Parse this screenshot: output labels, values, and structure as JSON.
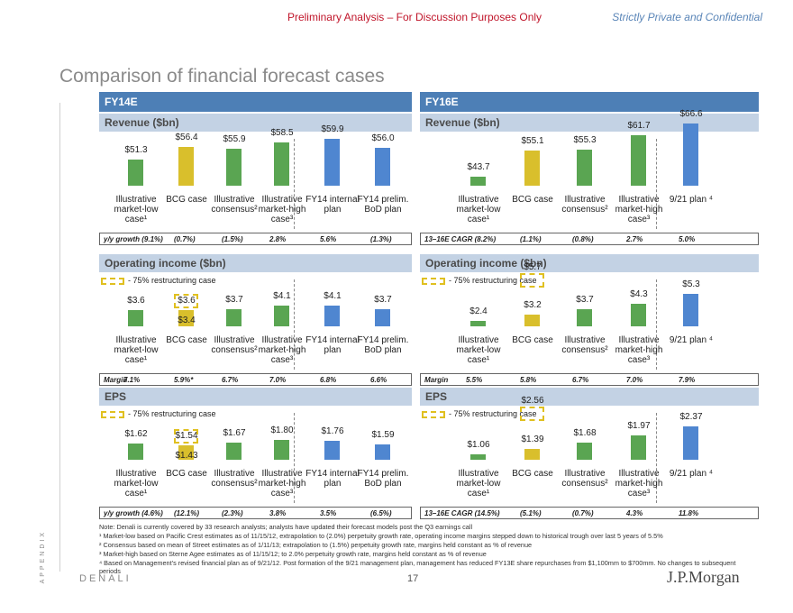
{
  "header": {
    "left": "Preliminary Analysis – For Discussion Purposes Only",
    "right": "Strictly Private and Confidential"
  },
  "title": "Comparison of financial forecast cases",
  "sidebar": "APPENDIX",
  "colors": {
    "green": "#5aa552",
    "gold": "#d9bf2c",
    "blue": "#4f86d0",
    "header": "#4d7fb6",
    "sub": "#c3d2e4"
  },
  "left": {
    "title": "FY14E",
    "categories": [
      "Illustrative market-low case¹",
      "BCG case",
      "Illustrative consensus²",
      "Illustrative market-high case³",
      "FY14 internal plan",
      "FY14 prelim. BoD plan"
    ],
    "revenue": {
      "title": "Revenue ($bn)",
      "labels": [
        "$51.3",
        "$56.4",
        "$55.9",
        "$58.5",
        "$59.9",
        "$56.0"
      ],
      "values": [
        51.3,
        56.4,
        55.9,
        58.5,
        59.9,
        56.0
      ],
      "growth_label": "y/y growth (9.1%)",
      "growth": [
        "(0.7%)",
        "(1.5%)",
        "2.8%",
        "5.6%",
        "(1.3%)"
      ]
    },
    "opinc": {
      "title": "Operating income ($bn)",
      "legend": "- 75% restructuring case",
      "labels": [
        "$3.6",
        "$3.6",
        "$3.7",
        "$4.1",
        "$4.1",
        "$3.7"
      ],
      "values": [
        3.6,
        3.6,
        3.7,
        4.1,
        4.1,
        3.7
      ],
      "restructuring_label": "$3.4",
      "restructuring_value": 3.4,
      "growth_label": "Margin",
      "growth": [
        "7.1%",
        "5.9%*",
        "6.7%",
        "7.0%",
        "6.8%",
        "6.6%"
      ]
    },
    "eps": {
      "title": "EPS",
      "legend": "- 75% restructuring case",
      "labels": [
        "$1.62",
        "$1.54",
        "$1.67",
        "$1.80",
        "$1.76",
        "$1.59"
      ],
      "values": [
        1.62,
        1.54,
        1.67,
        1.8,
        1.76,
        1.59
      ],
      "restructuring_label": "$1.43",
      "restructuring_value": 1.43,
      "growth_label": "y/y growth (4.6%)",
      "growth": [
        "(12.1%)",
        "(2.3%)",
        "3.8%",
        "3.5%",
        "(6.5%)"
      ]
    }
  },
  "right": {
    "title": "FY16E",
    "categories": [
      "Illustrative market-low case¹",
      "BCG case",
      "Illustrative consensus²",
      "Illustrative market-high case³",
      "9/21 plan ⁴"
    ],
    "revenue": {
      "title": "Revenue ($bn)",
      "labels": [
        "$43.7",
        "$55.1",
        "$55.3",
        "$61.7",
        "$66.6"
      ],
      "values": [
        43.7,
        55.1,
        55.3,
        61.7,
        66.6
      ],
      "growth_label": "13–16E CAGR (8.2%)",
      "growth": [
        "(1.1%)",
        "(0.8%)",
        "2.7%",
        "5.0%"
      ]
    },
    "opinc": {
      "title": "Operating income ($bn)",
      "legend": "- 75% restructuring case",
      "labels": [
        "$2.4",
        "$3.2",
        "$3.7",
        "$4.3",
        "$5.3"
      ],
      "values": [
        2.4,
        3.2,
        3.7,
        4.3,
        5.3
      ],
      "restructuring_label": "$5.7",
      "restructuring_value": 5.7,
      "growth_label": "Margin",
      "growth": [
        "5.5%",
        "5.8%",
        "6.7%",
        "7.0%",
        "7.9%"
      ]
    },
    "eps": {
      "title": "EPS",
      "legend": "- 75% restructuring case",
      "labels": [
        "$1.06",
        "$1.39",
        "$1.68",
        "$1.97",
        "$2.37"
      ],
      "values": [
        1.06,
        1.39,
        1.68,
        1.97,
        2.37
      ],
      "restructuring_label": "$2.56",
      "restructuring_value": 2.56,
      "growth_label": "13–16E CAGR (14.5%)",
      "growth": [
        "(5.1%)",
        "(0.7%)",
        "4.3%",
        "11.8%"
      ]
    }
  },
  "footnotes": {
    "note": "Note: Denali is currently covered by 33 research analysts; analysts have updated their forecast models post the Q3 earnings call",
    "f1": "¹  Market-low based on Pacific Crest estimates as of 11/15/12, extrapolation to (2.0%) perpetuity growth rate, operating income margins stepped down to historical trough over last 5 years of 5.5%",
    "f2": "²  Consensus based on mean of Street estimates as of 1/11/13; extrapolation to (1.5%) perpetuity growth rate, margins held constant as % of revenue",
    "f3": "³  Market-high based on Sterne Agee estimates as of 11/15/12; to 2.0% perpetuity growth rate, margins held constant as % of revenue",
    "f4": "⁴  Based on Management’s revised financial plan as of 9/21/12. Post formation of the 9/21 management plan, management has reduced FY13E share repurchases from $1,100mm to $700mm. No changes to subsequent periods"
  },
  "footer": {
    "company": "DENALI",
    "page": "17",
    "logo": "J.P.Morgan"
  },
  "chart_data": [
    {
      "type": "bar",
      "title": "FY14E Revenue ($bn)",
      "categories": [
        "Illustrative market-low case",
        "BCG case",
        "Illustrative consensus",
        "Illustrative market-high case",
        "FY14 internal plan",
        "FY14 prelim. BoD plan"
      ],
      "values": [
        51.3,
        56.4,
        55.9,
        58.5,
        59.9,
        56.0
      ]
    },
    {
      "type": "bar",
      "title": "FY14E Operating income ($bn)",
      "categories": [
        "Illustrative market-low case",
        "BCG case",
        "Illustrative consensus",
        "Illustrative market-high case",
        "FY14 internal plan",
        "FY14 prelim. BoD plan"
      ],
      "values": [
        3.6,
        3.6,
        3.7,
        4.1,
        4.1,
        3.7
      ]
    },
    {
      "type": "bar",
      "title": "FY14E EPS",
      "categories": [
        "Illustrative market-low case",
        "BCG case",
        "Illustrative consensus",
        "Illustrative market-high case",
        "FY14 internal plan",
        "FY14 prelim. BoD plan"
      ],
      "values": [
        1.62,
        1.54,
        1.67,
        1.8,
        1.76,
        1.59
      ]
    },
    {
      "type": "bar",
      "title": "FY16E Revenue ($bn)",
      "categories": [
        "Illustrative market-low case",
        "BCG case",
        "Illustrative consensus",
        "Illustrative market-high case",
        "9/21 plan"
      ],
      "values": [
        43.7,
        55.1,
        55.3,
        61.7,
        66.6
      ]
    },
    {
      "type": "bar",
      "title": "FY16E Operating income ($bn)",
      "categories": [
        "Illustrative market-low case",
        "BCG case",
        "Illustrative consensus",
        "Illustrative market-high case",
        "9/21 plan"
      ],
      "values": [
        2.4,
        3.2,
        3.7,
        4.3,
        5.3
      ]
    },
    {
      "type": "bar",
      "title": "FY16E EPS",
      "categories": [
        "Illustrative market-low case",
        "BCG case",
        "Illustrative consensus",
        "Illustrative market-high case",
        "9/21 plan"
      ],
      "values": [
        1.06,
        1.39,
        1.68,
        1.97,
        2.37
      ]
    }
  ]
}
